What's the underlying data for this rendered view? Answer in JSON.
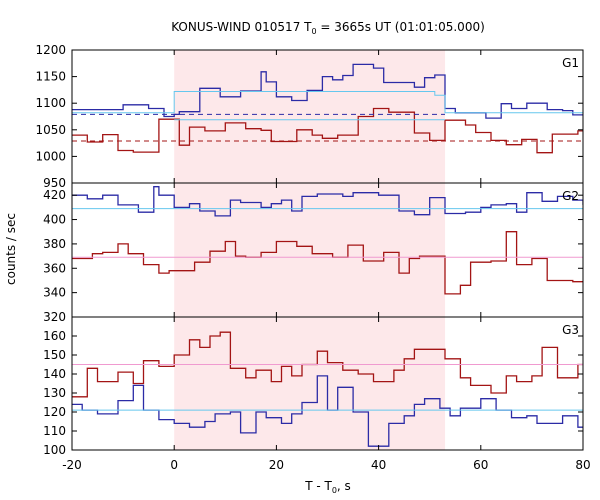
{
  "chart_data": {
    "type": "line",
    "title": "KONUS-WIND 010517 T",
    "title_sub": "0",
    "title_rest": " = 3665s UT (01:01:05.000)",
    "xlabel": "T - T",
    "xlabel_sub": "0",
    "xlabel_rest": ", s",
    "ylabel": "counts / sec",
    "xlim": [
      -20,
      80
    ],
    "xticks": [
      -20,
      0,
      20,
      40,
      60,
      80
    ],
    "highlight": {
      "from": 0,
      "to": 53,
      "color": "#fde8ea"
    },
    "colors": {
      "blue": "#2b2ba6",
      "red": "#a31414",
      "lightblue": "#66c7ee",
      "pink": "#f09ad0"
    },
    "panels": [
      {
        "label": "G1",
        "ylim": [
          950,
          1200
        ],
        "yticks": [
          950,
          1000,
          1050,
          1100,
          1150,
          1200
        ],
        "series": [
          {
            "color": "blue",
            "style": "step",
            "x": [
              -20,
              -12,
              -10,
              -5,
              -2,
              0,
              1,
              5,
              9,
              13,
              17,
              18,
              20,
              23,
              26,
              29,
              31,
              33,
              35,
              39,
              41,
              47,
              49,
              51,
              53,
              55,
              61,
              64,
              66,
              69,
              73,
              76,
              78
            ],
            "y": [
              1088,
              1088,
              1097,
              1090,
              1075,
              1079,
              1084,
              1128,
              1112,
              1123,
              1159,
              1140,
              1112,
              1105,
              1124,
              1150,
              1144,
              1152,
              1173,
              1166,
              1139,
              1130,
              1148,
              1153,
              1090,
              1082,
              1072,
              1099,
              1090,
              1100,
              1088,
              1086,
              1078
            ]
          },
          {
            "color": "red",
            "style": "step",
            "x": [
              -20,
              -17,
              -14,
              -11,
              -8,
              -3,
              0,
              1,
              3,
              6,
              10,
              14,
              17,
              19,
              24,
              27,
              29,
              32,
              36,
              39,
              42,
              47,
              50,
              53,
              57,
              59,
              62,
              65,
              68,
              71,
              74,
              79
            ],
            "y": [
              1040,
              1027,
              1041,
              1011,
              1008,
              1070,
              1070,
              1021,
              1055,
              1048,
              1063,
              1052,
              1049,
              1028,
              1050,
              1040,
              1034,
              1040,
              1075,
              1090,
              1083,
              1044,
              1030,
              1068,
              1059,
              1045,
              1030,
              1022,
              1032,
              1007,
              1042,
              1048
            ]
          },
          {
            "color": "blue",
            "style": "dashed",
            "x": [
              -20,
              53
            ],
            "y": [
              1079,
              1079
            ]
          },
          {
            "color": "red",
            "style": "dashed",
            "x": [
              -20,
              80
            ],
            "y": [
              1029,
              1029
            ]
          },
          {
            "color": "lightblue",
            "style": "line",
            "x": [
              -20,
              0,
              0,
              51,
              51,
              53,
              53,
              80
            ],
            "y": [
              1082,
              1082,
              1122,
              1122,
              1115,
              1115,
              1082,
              1082
            ]
          },
          {
            "color": "lightblue",
            "style": "line",
            "x": [
              0,
              53
            ],
            "y": [
              1069,
              1069
            ]
          }
        ]
      },
      {
        "label": "G2",
        "ylim": [
          320,
          430
        ],
        "yticks": [
          320,
          340,
          360,
          380,
          400,
          420
        ],
        "series": [
          {
            "color": "blue",
            "style": "step",
            "x": [
              -20,
              -17,
              -14,
              -11,
              -7,
              -4,
              -3,
              0,
              3,
              5,
              8,
              11,
              13,
              17,
              19,
              21,
              23,
              25,
              28,
              33,
              35,
              40,
              44,
              47,
              50,
              53,
              57,
              60,
              62,
              65,
              67,
              69,
              72,
              75,
              78,
              80
            ],
            "y": [
              420,
              417,
              420,
              412,
              406,
              427,
              420,
              410,
              413,
              407,
              403,
              416,
              414,
              410,
              413,
              416,
              407,
              419,
              421,
              419,
              422,
              420,
              407,
              404,
              418,
              405,
              406,
              410,
              412,
              413,
              406,
              422,
              415,
              419,
              416,
              412
            ]
          },
          {
            "color": "red",
            "style": "step",
            "x": [
              -20,
              -16,
              -14,
              -11,
              -9,
              -6,
              -3,
              -1,
              0,
              4,
              7,
              10,
              12,
              14,
              17,
              20,
              24,
              27,
              31,
              34,
              37,
              41,
              44,
              46,
              48,
              53,
              56,
              58,
              62,
              65,
              67,
              70,
              73,
              78
            ],
            "y": [
              368,
              372,
              373,
              380,
              372,
              363,
              356,
              358,
              358,
              365,
              374,
              382,
              370,
              369,
              373,
              382,
              378,
              372,
              369,
              379,
              366,
              373,
              356,
              368,
              370,
              339,
              346,
              365,
              366,
              390,
              363,
              368,
              350,
              349
            ]
          },
          {
            "color": "lightblue",
            "style": "line",
            "x": [
              -20,
              80
            ],
            "y": [
              409,
              409
            ]
          },
          {
            "color": "pink",
            "style": "line",
            "x": [
              -20,
              80
            ],
            "y": [
              369,
              369
            ]
          }
        ]
      },
      {
        "label": "G3",
        "ylim": [
          100,
          170
        ],
        "yticks": [
          100,
          110,
          120,
          130,
          140,
          150,
          160
        ],
        "series": [
          {
            "color": "blue",
            "style": "step",
            "x": [
              -20,
              -18,
              -15,
              -11,
              -8,
              -6,
              -3,
              0,
              3,
              6,
              8,
              11,
              13,
              16,
              18,
              21,
              23,
              25,
              28,
              30,
              32,
              35,
              38,
              42,
              45,
              47,
              49,
              52,
              54,
              56,
              60,
              63,
              66,
              69,
              71,
              76,
              79
            ],
            "y": [
              124,
              121,
              119,
              126,
              134,
              121,
              116,
              114,
              112,
              115,
              119,
              120,
              109,
              120,
              117,
              114,
              119,
              125,
              139,
              121,
              133,
              120,
              102,
              114,
              118,
              124,
              127,
              122,
              118,
              122,
              127,
              121,
              117,
              118,
              114,
              118,
              112
            ]
          },
          {
            "color": "red",
            "style": "step",
            "x": [
              -20,
              -17,
              -15,
              -11,
              -8,
              -6,
              -3,
              0,
              3,
              5,
              7,
              9,
              11,
              14,
              16,
              19,
              21,
              23,
              25,
              28,
              30,
              33,
              36,
              39,
              43,
              45,
              47,
              53,
              56,
              58,
              62,
              65,
              67,
              70,
              72,
              75,
              79
            ],
            "y": [
              128,
              143,
              136,
              141,
              135,
              147,
              144,
              150,
              158,
              154,
              160,
              162,
              143,
              138,
              142,
              136,
              144,
              139,
              145,
              152,
              146,
              142,
              140,
              136,
              142,
              148,
              153,
              148,
              138,
              134,
              130,
              139,
              136,
              139,
              154,
              138,
              145
            ]
          },
          {
            "color": "lightblue",
            "style": "line",
            "x": [
              -20,
              80
            ],
            "y": [
              121,
              121
            ]
          },
          {
            "color": "pink",
            "style": "line",
            "x": [
              -20,
              80
            ],
            "y": [
              145,
              145
            ]
          }
        ]
      }
    ]
  }
}
